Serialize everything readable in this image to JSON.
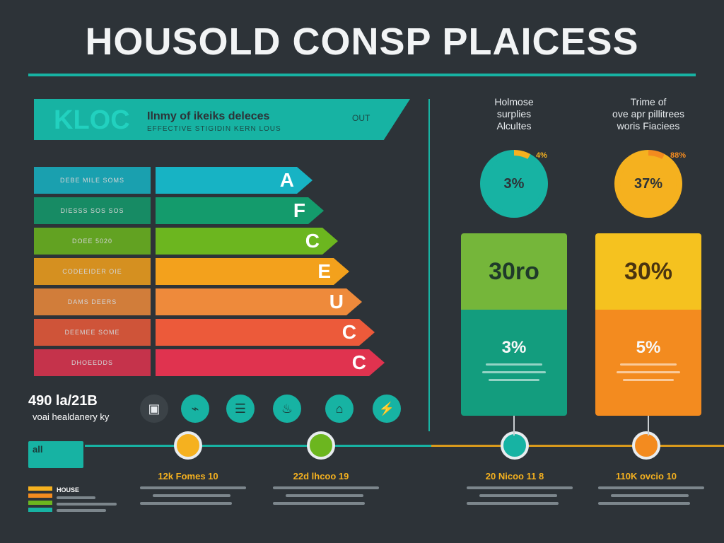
{
  "title": "HOUSOLD CONSP PLAICESS",
  "banner": {
    "logo": "KLOC",
    "heading": "Ilnmy of ikeiks deleces",
    "subheading": "EFFECTIVE STIGIDIN KERN LOUS",
    "unit": "OUT"
  },
  "ratings": [
    {
      "label": "DEBE MILE SOMS",
      "letter": "A",
      "color": "#17b3c4"
    },
    {
      "label": "DIESSS SOS SOS",
      "letter": "F",
      "color": "#149b6c"
    },
    {
      "label": "DOEE 5020",
      "letter": "C",
      "color": "#6cb61f"
    },
    {
      "label": "CODEEIDER  OIE",
      "letter": "E",
      "color": "#f3a11c"
    },
    {
      "label": "DAMS DEERS",
      "letter": "U",
      "color": "#ee8a3b"
    },
    {
      "label": "DEEMEE SOME",
      "letter": "C",
      "color": "#ec5a3a"
    },
    {
      "label": "DHOEEDDS",
      "letter": "C",
      "color": "#e0334f"
    }
  ],
  "readout": {
    "value": "490 la/21B",
    "label": "voai healdanery ky"
  },
  "icons": [
    {
      "name": "washer-icon",
      "glyph": "▣",
      "bg": "#3b4247",
      "fg": "#e8ecef"
    },
    {
      "name": "faucet-icon",
      "glyph": "⌁",
      "bg": "#17b3a3",
      "fg": "#1b3a38"
    },
    {
      "name": "stove-icon",
      "glyph": "☰",
      "bg": "#17b3a3",
      "fg": "#1b3a38"
    },
    {
      "name": "kettle-icon",
      "glyph": "♨",
      "bg": "#17b3a3",
      "fg": "#1b3a38"
    },
    {
      "name": "appliance-icon",
      "glyph": "⌂",
      "bg": "#17b3a3",
      "fg": "#1b3a38"
    },
    {
      "name": "plug-icon",
      "glyph": "⚡",
      "bg": "#17b3a3",
      "fg": "#1b3a38"
    }
  ],
  "legend_box": {
    "label": "all"
  },
  "legend_key": {
    "title": "HOUSE"
  },
  "timeline": [
    {
      "node_color": "#f5b11f",
      "label": "12k Fomes 10"
    },
    {
      "node_color": "#6cb61f",
      "label": "22d lhcoo 19"
    },
    {
      "node_color": "#17b3a3",
      "label": "20 Nicoo 11 8"
    },
    {
      "node_color": "#f38b1f",
      "label": "110K ovcio 10"
    }
  ],
  "columns": [
    {
      "heading": [
        "Holmose",
        "surplies",
        "Alcultes"
      ],
      "donut_value": "3%",
      "donut_tag": "4%",
      "donut_color": "#17b3a3",
      "donut_accent": "#f5b11f",
      "card_top": "30ro",
      "card_pct": "3%",
      "card_top_color": "#75b63a",
      "card_bottom_color": "#139d7e",
      "card_text_color": "#1f3a2a"
    },
    {
      "heading": [
        "Trime of",
        "ove apr pillitrees",
        "woris Fiaciees"
      ],
      "donut_value": "37%",
      "donut_tag": "88%",
      "donut_color": "#f5b11f",
      "donut_accent": "#f38b1f",
      "card_top": "30%",
      "card_pct": "5%",
      "card_top_color": "#f5c21f",
      "card_bottom_color": "#f38b1f",
      "card_text_color": "#4a3410"
    }
  ]
}
